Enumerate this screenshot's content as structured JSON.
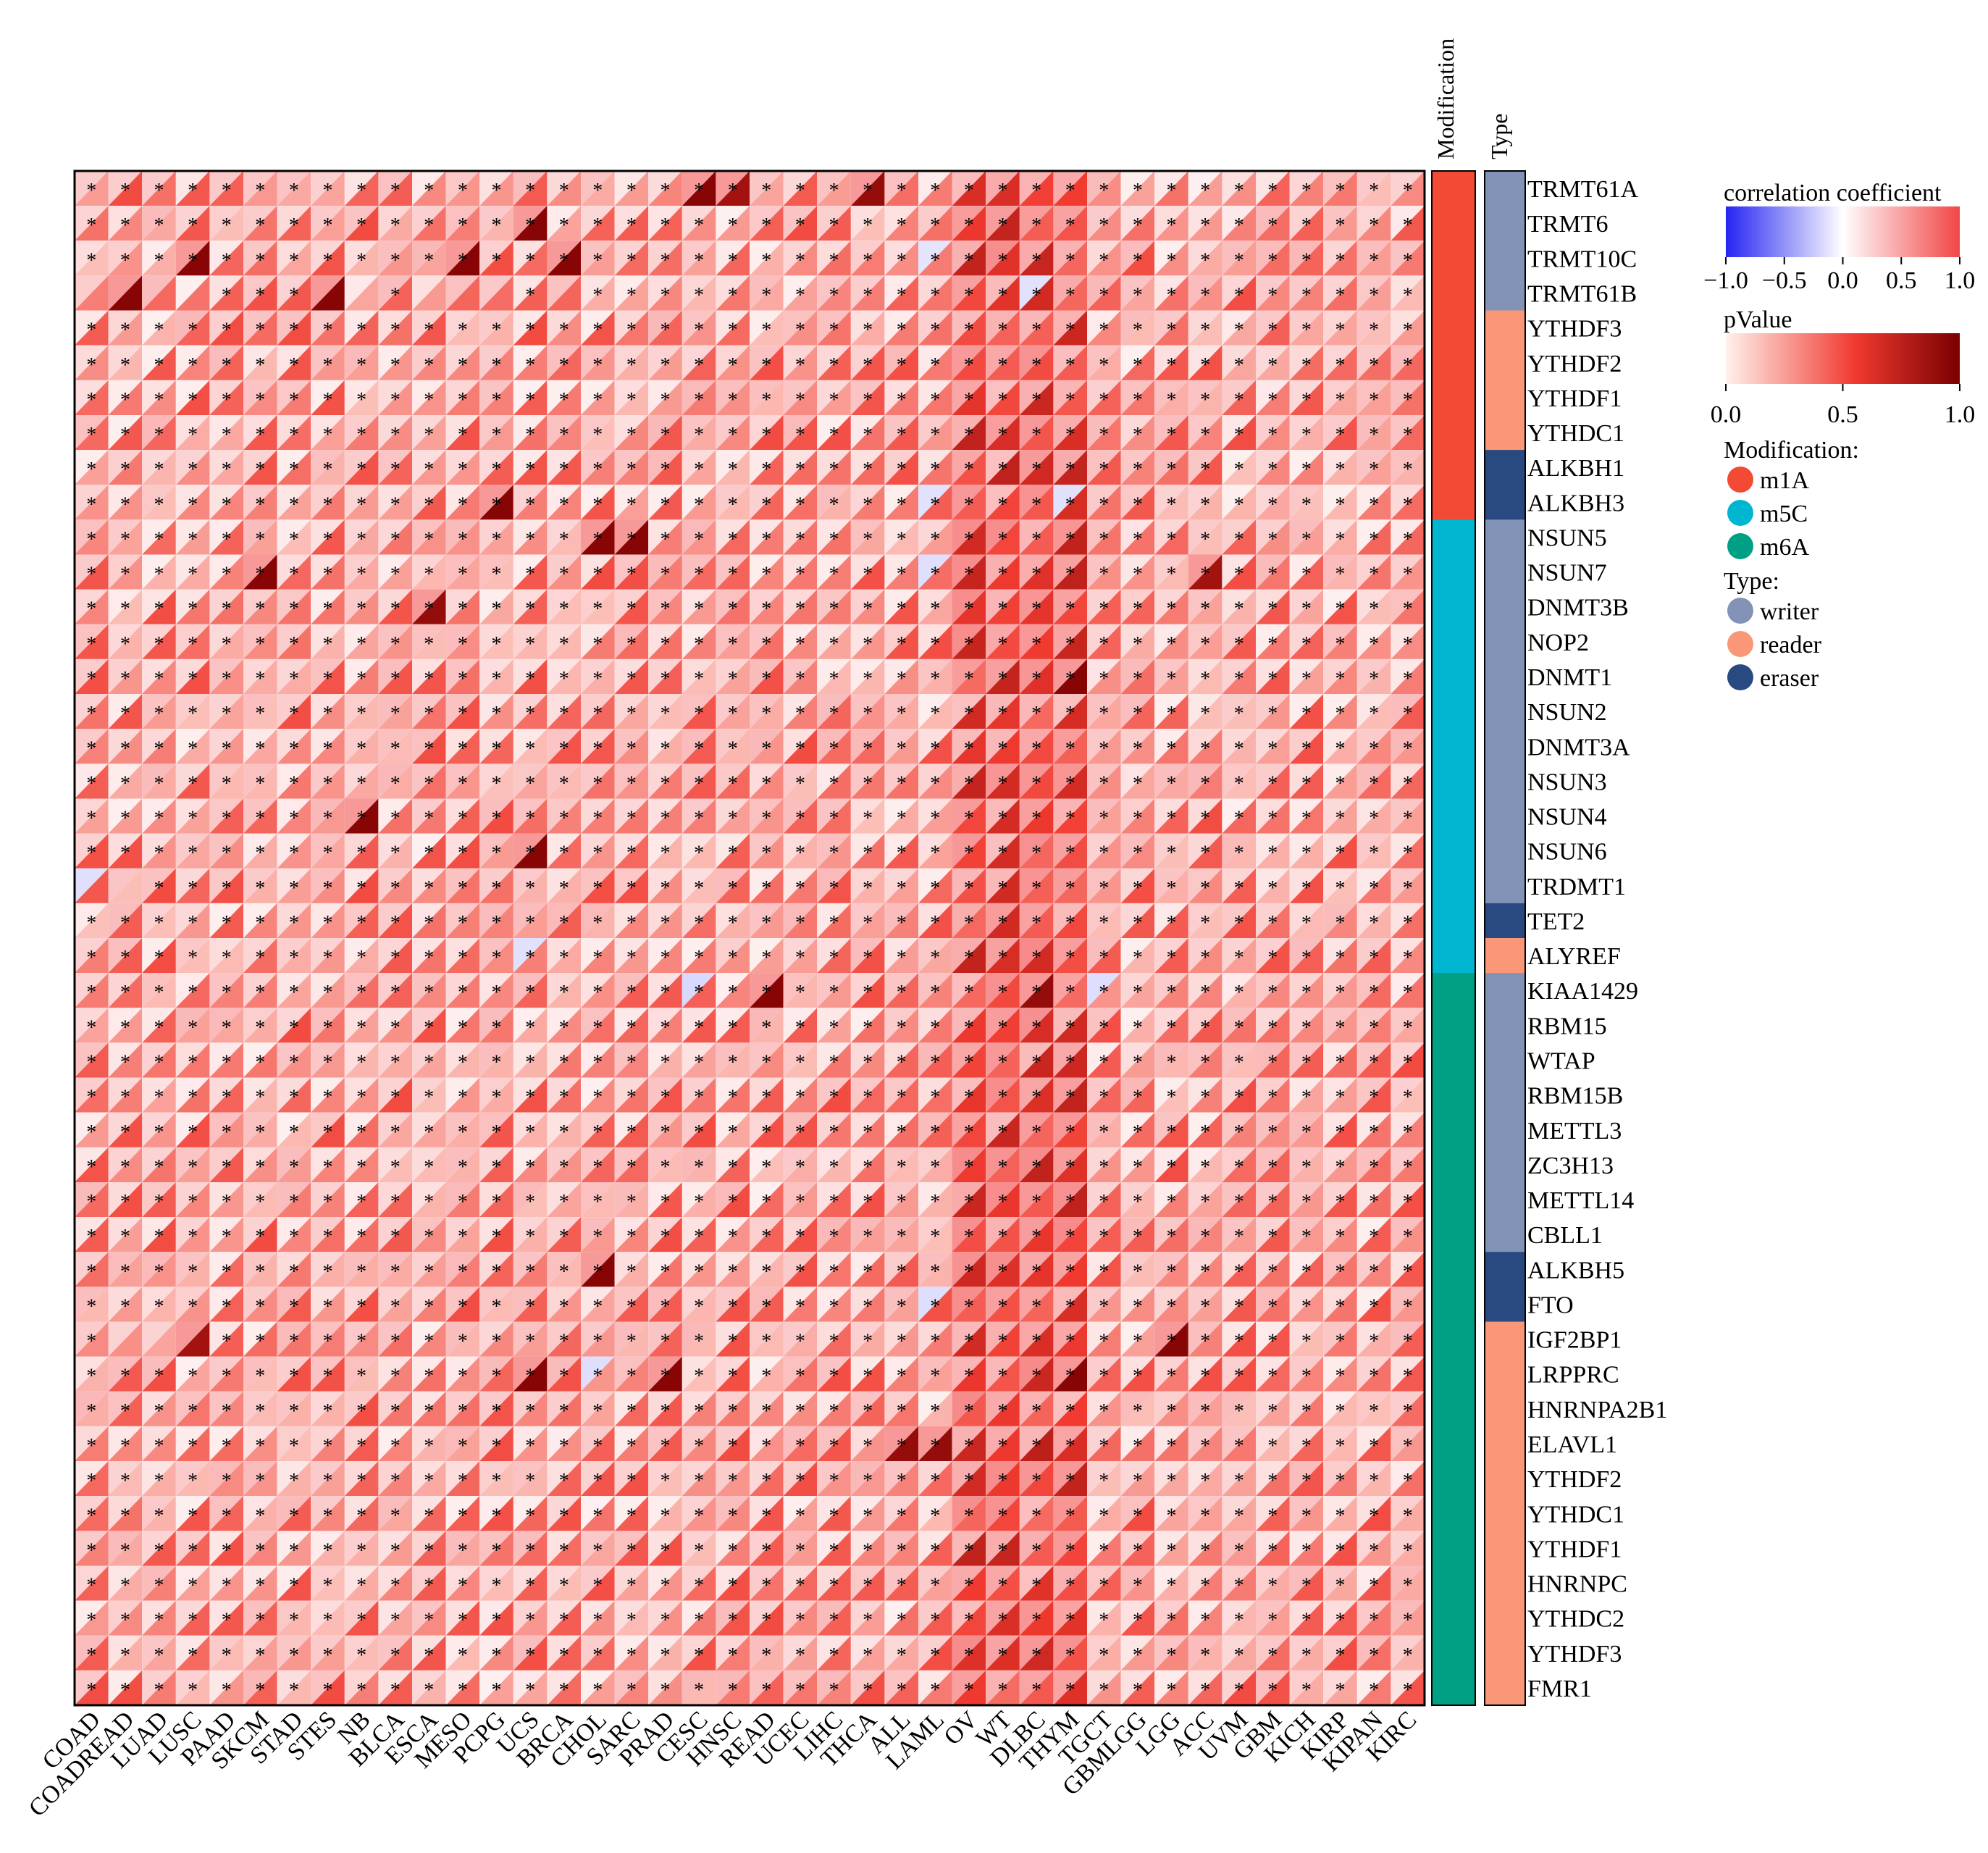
{
  "chart_data": {
    "type": "heatmap",
    "title": "",
    "xlabel": "",
    "ylabel": "",
    "cancers": [
      "COAD",
      "COADREAD",
      "LUAD",
      "LUSC",
      "PAAD",
      "SKCM",
      "STAD",
      "STES",
      "NB",
      "BLCA",
      "ESCA",
      "MESO",
      "PCPG",
      "UCS",
      "BRCA",
      "CHOL",
      "SARC",
      "PRAD",
      "CESC",
      "HNSC",
      "READ",
      "UCEC",
      "LIHC",
      "THCA",
      "ALL",
      "LAML",
      "OV",
      "WT",
      "DLBC",
      "THYM",
      "TGCT",
      "GBMLGG",
      "LGG",
      "ACC",
      "UVM",
      "GBM",
      "KICH",
      "KIRP",
      "KIPAN",
      "KIRC"
    ],
    "genes": [
      {
        "name": "TRMT61A",
        "modification": "m1A",
        "type": "writer"
      },
      {
        "name": "TRMT6",
        "modification": "m1A",
        "type": "writer"
      },
      {
        "name": "TRMT10C",
        "modification": "m1A",
        "type": "writer"
      },
      {
        "name": "TRMT61B",
        "modification": "m1A",
        "type": "writer"
      },
      {
        "name": "YTHDF3",
        "modification": "m1A",
        "type": "reader"
      },
      {
        "name": "YTHDF2",
        "modification": "m1A",
        "type": "reader"
      },
      {
        "name": "YTHDF1",
        "modification": "m1A",
        "type": "reader"
      },
      {
        "name": "YTHDC1",
        "modification": "m1A",
        "type": "reader"
      },
      {
        "name": "ALKBH1",
        "modification": "m1A",
        "type": "eraser"
      },
      {
        "name": "ALKBH3",
        "modification": "m1A",
        "type": "eraser"
      },
      {
        "name": "NSUN5",
        "modification": "m5C",
        "type": "writer"
      },
      {
        "name": "NSUN7",
        "modification": "m5C",
        "type": "writer"
      },
      {
        "name": "DNMT3B",
        "modification": "m5C",
        "type": "writer"
      },
      {
        "name": "NOP2",
        "modification": "m5C",
        "type": "writer"
      },
      {
        "name": "DNMT1",
        "modification": "m5C",
        "type": "writer"
      },
      {
        "name": "NSUN2",
        "modification": "m5C",
        "type": "writer"
      },
      {
        "name": "DNMT3A",
        "modification": "m5C",
        "type": "writer"
      },
      {
        "name": "NSUN3",
        "modification": "m5C",
        "type": "writer"
      },
      {
        "name": "NSUN4",
        "modification": "m5C",
        "type": "writer"
      },
      {
        "name": "NSUN6",
        "modification": "m5C",
        "type": "writer"
      },
      {
        "name": "TRDMT1",
        "modification": "m5C",
        "type": "writer"
      },
      {
        "name": "TET2",
        "modification": "m5C",
        "type": "eraser"
      },
      {
        "name": "ALYREF",
        "modification": "m5C",
        "type": "reader"
      },
      {
        "name": "KIAA1429",
        "modification": "m6A",
        "type": "writer"
      },
      {
        "name": "RBM15",
        "modification": "m6A",
        "type": "writer"
      },
      {
        "name": "WTAP",
        "modification": "m6A",
        "type": "writer"
      },
      {
        "name": "RBM15B",
        "modification": "m6A",
        "type": "writer"
      },
      {
        "name": "METTL3",
        "modification": "m6A",
        "type": "writer"
      },
      {
        "name": "ZC3H13",
        "modification": "m6A",
        "type": "writer"
      },
      {
        "name": "METTL14",
        "modification": "m6A",
        "type": "writer"
      },
      {
        "name": "CBLL1",
        "modification": "m6A",
        "type": "writer"
      },
      {
        "name": "ALKBH5",
        "modification": "m6A",
        "type": "eraser"
      },
      {
        "name": "FTO",
        "modification": "m6A",
        "type": "eraser"
      },
      {
        "name": "IGF2BP1",
        "modification": "m6A",
        "type": "reader"
      },
      {
        "name": "LRPPRC",
        "modification": "m6A",
        "type": "reader"
      },
      {
        "name": "HNRNPA2B1",
        "modification": "m6A",
        "type": "reader"
      },
      {
        "name": "ELAVL1",
        "modification": "m6A",
        "type": "reader"
      },
      {
        "name": "YTHDF2",
        "modification": "m6A",
        "type": "reader"
      },
      {
        "name": "YTHDC1",
        "modification": "m6A",
        "type": "reader"
      },
      {
        "name": "YTHDF1",
        "modification": "m6A",
        "type": "reader"
      },
      {
        "name": "HNRNPC",
        "modification": "m6A",
        "type": "reader"
      },
      {
        "name": "YTHDC2",
        "modification": "m6A",
        "type": "reader"
      },
      {
        "name": "YTHDF3",
        "modification": "m6A",
        "type": "reader"
      },
      {
        "name": "FMR1",
        "modification": "m6A",
        "type": "reader"
      }
    ],
    "cell_encoding": "each cell split diagonally: upper-left triangle = correlation coefficient (blue-white-red, -1 to 1), lower-right triangle = pValue (white to dark red, 0 to 1); asterisk marks significant cells",
    "strong_cells": [
      {
        "gene": "TRMT61A",
        "cancer": "CESC",
        "pvalue": 0.95
      },
      {
        "gene": "TRMT61A",
        "cancer": "HNSC",
        "pvalue": 0.85
      },
      {
        "gene": "TRMT61A",
        "cancer": "THCA",
        "pvalue": 0.9
      },
      {
        "gene": "TRMT6",
        "cancer": "UCS",
        "pvalue": 0.95
      },
      {
        "gene": "TRMT10C",
        "cancer": "LUSC",
        "pvalue": 0.95
      },
      {
        "gene": "TRMT10C",
        "cancer": "MESO",
        "pvalue": 0.95
      },
      {
        "gene": "TRMT10C",
        "cancer": "BRCA",
        "pvalue": 0.95
      },
      {
        "gene": "TRMT61B",
        "cancer": "COADREAD",
        "pvalue": 0.95
      },
      {
        "gene": "TRMT61B",
        "cancer": "STES",
        "pvalue": 0.95
      },
      {
        "gene": "ALKBH3",
        "cancer": "PCPG",
        "pvalue": 0.95
      },
      {
        "gene": "NSUN5",
        "cancer": "CHOL",
        "pvalue": 0.95
      },
      {
        "gene": "NSUN5",
        "cancer": "SARC",
        "pvalue": 0.95
      },
      {
        "gene": "NSUN7",
        "cancer": "SKCM",
        "pvalue": 0.95
      },
      {
        "gene": "NSUN7",
        "cancer": "ACC",
        "pvalue": 0.85
      },
      {
        "gene": "DNMT3B",
        "cancer": "ESCA",
        "pvalue": 0.9
      },
      {
        "gene": "DNMT1",
        "cancer": "THYM",
        "pvalue": 0.95
      },
      {
        "gene": "NSUN4",
        "cancer": "NB",
        "pvalue": 0.95
      },
      {
        "gene": "NSUN6",
        "cancer": "UCS",
        "pvalue": 0.95
      },
      {
        "gene": "KIAA1429",
        "cancer": "READ",
        "pvalue": 0.95
      },
      {
        "gene": "KIAA1429",
        "cancer": "DLBC",
        "pvalue": 0.9
      },
      {
        "gene": "ALKBH5",
        "cancer": "CHOL",
        "pvalue": 0.95
      },
      {
        "gene": "IGF2BP1",
        "cancer": "LUSC",
        "pvalue": 0.85
      },
      {
        "gene": "IGF2BP1",
        "cancer": "LGG",
        "pvalue": 0.95
      },
      {
        "gene": "LRPPRC",
        "cancer": "UCS",
        "pvalue": 0.95
      },
      {
        "gene": "LRPPRC",
        "cancer": "PRAD",
        "pvalue": 0.95
      },
      {
        "gene": "LRPPRC",
        "cancer": "THYM",
        "pvalue": 0.95
      },
      {
        "gene": "ELAVL1",
        "cancer": "ALL",
        "pvalue": 0.9
      },
      {
        "gene": "ELAVL1",
        "cancer": "LAML",
        "pvalue": 0.9
      }
    ],
    "negative_cells": [
      {
        "gene": "TRMT10C",
        "cancer": "LAML"
      },
      {
        "gene": "TRMT61B",
        "cancer": "DLBC"
      },
      {
        "gene": "ALKBH3",
        "cancer": "THYM"
      },
      {
        "gene": "ALKBH3",
        "cancer": "LAML"
      },
      {
        "gene": "NSUN7",
        "cancer": "LAML"
      },
      {
        "gene": "TRDMT1",
        "cancer": "COAD"
      },
      {
        "gene": "ALYREF",
        "cancer": "UCS"
      },
      {
        "gene": "KIAA1429",
        "cancer": "CESC"
      },
      {
        "gene": "KIAA1429",
        "cancer": "TGCT"
      },
      {
        "gene": "LRPPRC",
        "cancer": "CHOL"
      },
      {
        "gene": "FTO",
        "cancer": "LAML"
      }
    ],
    "blank_columns_in_rows": {
      "TRMT61B": [
        "COAD",
        "COADREAD",
        "LUAD",
        "LUSC",
        "STES",
        "NB",
        "ESCA",
        "MESO",
        "PCPG",
        "BRCA"
      ],
      "TRDMT1": [
        "COAD",
        "COADREAD"
      ],
      "IGF2BP1": [
        "COADREAD",
        "LUAD",
        "LUSC"
      ]
    }
  },
  "annotations": {
    "modification_header": "Modification",
    "type_header": "Type",
    "modification_colors": {
      "m1A": "#f24a35",
      "m5C": "#00b5cf",
      "m6A": "#00a084"
    },
    "type_colors": {
      "writer": "#8393b8",
      "reader": "#f99777",
      "eraser": "#284a80"
    }
  },
  "legend": {
    "corr_title": "correlation coefficient",
    "corr_ticks": [
      "−1.0",
      "−0.5",
      "0.0",
      "0.5",
      "1.0"
    ],
    "corr_range": [
      -1,
      1
    ],
    "corr_colors": [
      "#2525f2",
      "#ffffff",
      "#f24545"
    ],
    "pval_title": "pValue",
    "pval_ticks": [
      "0.0",
      "0.5",
      "1.0"
    ],
    "pval_range": [
      0,
      1
    ],
    "pval_colors": [
      "#fff2ec",
      "#f13a30",
      "#7a0000"
    ],
    "mod_title": "Modification:",
    "mod_items": [
      {
        "label": "m1A",
        "color": "#f24a35"
      },
      {
        "label": "m5C",
        "color": "#00b5cf"
      },
      {
        "label": "m6A",
        "color": "#00a084"
      }
    ],
    "type_title": "Type:",
    "type_items": [
      {
        "label": "writer",
        "color": "#8393b8"
      },
      {
        "label": "reader",
        "color": "#f99777"
      },
      {
        "label": "eraser",
        "color": "#284a80"
      }
    ]
  }
}
